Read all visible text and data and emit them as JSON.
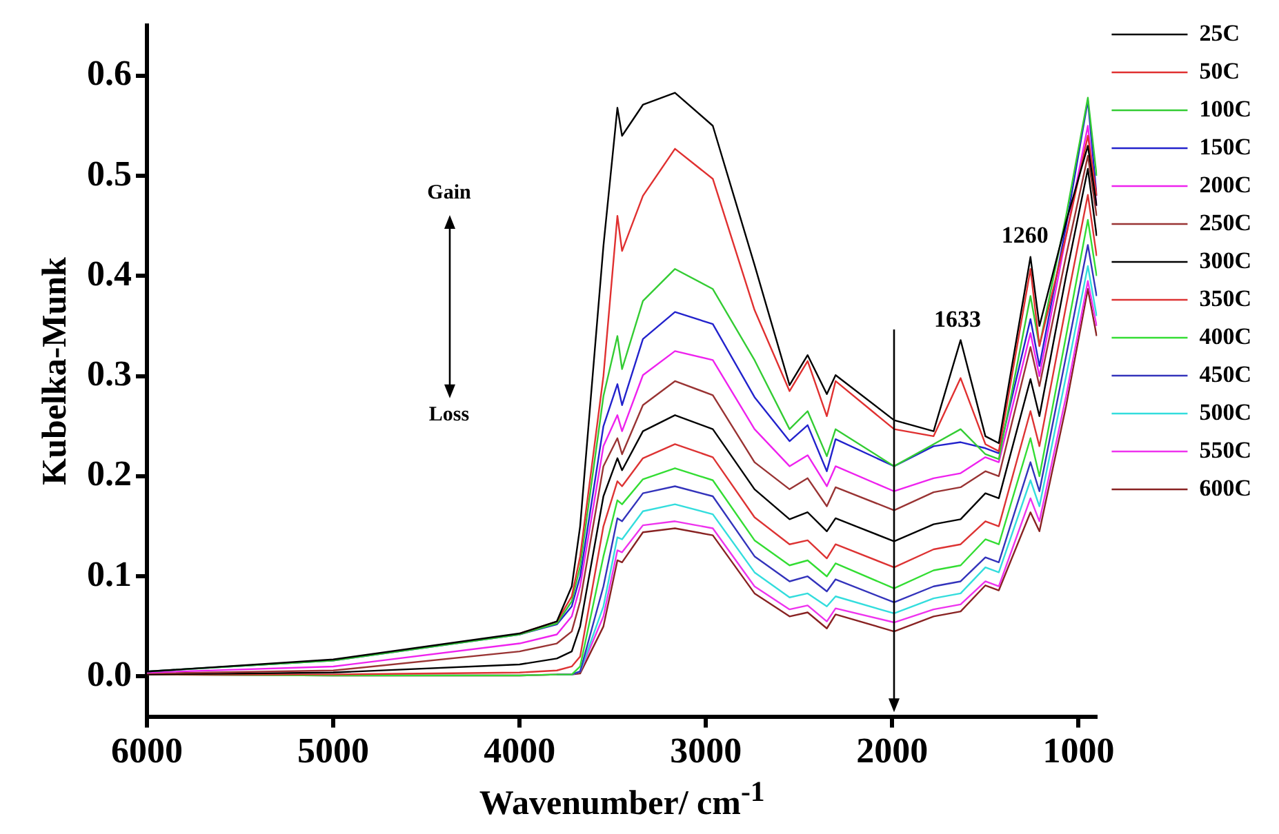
{
  "chart_data": {
    "type": "line",
    "xlabel": "Wavenumber/ cm$^{-1}$",
    "ylabel": "Kubelka-Munk",
    "x": [
      6000,
      5000,
      4000,
      3800,
      3720,
      3675,
      3550,
      3475,
      3450,
      3338,
      3166,
      2963,
      2739,
      2551,
      2454,
      2351,
      2304,
      1990,
      1778,
      1633,
      1500,
      1428,
      1258,
      1210,
      1067,
      950,
      903
    ],
    "series": [
      {
        "name": "25C",
        "color": "#000000",
        "values": [
          0.005,
          0.017,
          0.043,
          0.055,
          0.09,
          0.15,
          0.43,
          0.568,
          0.54,
          0.571,
          0.583,
          0.55,
          0.411,
          0.291,
          0.321,
          0.282,
          0.301,
          0.256,
          0.245,
          0.336,
          0.24,
          0.233,
          0.419,
          0.35,
          0.454,
          0.53,
          0.47
        ]
      },
      {
        "name": "50C",
        "color": "#e03030",
        "values": [
          null,
          null,
          0.043,
          0.055,
          0.08,
          0.12,
          0.3,
          0.46,
          0.425,
          0.48,
          0.527,
          0.497,
          0.366,
          0.285,
          0.315,
          0.26,
          0.295,
          0.247,
          0.24,
          0.298,
          0.232,
          0.225,
          0.407,
          0.33,
          0.44,
          0.54,
          0.48
        ]
      },
      {
        "name": "100C",
        "color": "#33cc33",
        "values": [
          0.005,
          0.016,
          0.042,
          0.053,
          0.075,
          0.11,
          0.28,
          0.34,
          0.307,
          0.375,
          0.407,
          0.387,
          0.316,
          0.247,
          0.265,
          0.22,
          0.247,
          0.21,
          0.232,
          0.247,
          0.222,
          0.217,
          0.38,
          0.33,
          0.46,
          0.578,
          0.5
        ]
      },
      {
        "name": "150C",
        "color": "#2222cc",
        "values": [
          0.005,
          0.016,
          0.042,
          0.052,
          0.07,
          0.1,
          0.25,
          0.292,
          0.271,
          0.337,
          0.364,
          0.352,
          0.279,
          0.235,
          0.251,
          0.205,
          0.237,
          0.21,
          0.23,
          0.234,
          0.228,
          0.223,
          0.357,
          0.31,
          0.45,
          0.575,
          0.48
        ]
      },
      {
        "name": "200C",
        "color": "#ee22ee",
        "values": [
          0.004,
          0.01,
          0.033,
          0.042,
          0.06,
          0.09,
          0.23,
          0.261,
          0.245,
          0.301,
          0.325,
          0.316,
          0.247,
          0.21,
          0.221,
          0.19,
          0.21,
          0.185,
          0.198,
          0.203,
          0.219,
          0.214,
          0.343,
          0.3,
          0.44,
          0.55,
          0.47
        ]
      },
      {
        "name": "250C",
        "color": "#993333",
        "values": [
          0.003,
          0.006,
          0.025,
          0.033,
          0.045,
          0.075,
          0.21,
          0.238,
          0.222,
          0.271,
          0.295,
          0.281,
          0.214,
          0.187,
          0.198,
          0.17,
          0.189,
          0.166,
          0.184,
          0.189,
          0.205,
          0.2,
          0.329,
          0.29,
          0.42,
          0.52,
          0.46
        ]
      },
      {
        "name": "300C",
        "color": "#000000",
        "values": [
          0.002,
          0.004,
          0.012,
          0.018,
          0.025,
          0.05,
          0.18,
          0.218,
          0.206,
          0.245,
          0.261,
          0.247,
          0.187,
          0.157,
          0.164,
          0.145,
          0.158,
          0.135,
          0.152,
          0.157,
          0.183,
          0.178,
          0.297,
          0.26,
          0.4,
          0.507,
          0.44
        ]
      },
      {
        "name": "350C",
        "color": "#dd3333",
        "values": [
          0.002,
          0.002,
          0.004,
          0.006,
          0.01,
          0.02,
          0.15,
          0.195,
          0.19,
          0.218,
          0.232,
          0.219,
          0.159,
          0.132,
          0.136,
          0.118,
          0.132,
          0.109,
          0.127,
          0.132,
          0.155,
          0.15,
          0.265,
          0.23,
          0.37,
          0.481,
          0.42
        ]
      },
      {
        "name": "400C",
        "color": "#33dd33",
        "values": [
          0.002,
          0.001,
          0.001,
          0.002,
          0.002,
          0.01,
          0.12,
          0.176,
          0.172,
          0.197,
          0.208,
          0.196,
          0.136,
          0.111,
          0.116,
          0.1,
          0.113,
          0.088,
          0.106,
          0.111,
          0.137,
          0.132,
          0.238,
          0.2,
          0.34,
          0.456,
          0.4
        ]
      },
      {
        "name": "450C",
        "color": "#3333bb",
        "values": [
          null,
          null,
          null,
          0.002,
          0.002,
          0.005,
          0.09,
          0.158,
          0.155,
          0.183,
          0.19,
          0.18,
          0.12,
          0.095,
          0.1,
          0.085,
          0.097,
          0.074,
          0.09,
          0.095,
          0.119,
          0.114,
          0.214,
          0.185,
          0.32,
          0.431,
          0.38
        ]
      },
      {
        "name": "500C",
        "color": "#33dddd",
        "values": [
          null,
          null,
          null,
          null,
          0.002,
          0.005,
          0.07,
          0.139,
          0.137,
          0.165,
          0.172,
          0.162,
          0.104,
          0.079,
          0.083,
          0.07,
          0.08,
          0.063,
          0.078,
          0.083,
          0.109,
          0.104,
          0.196,
          0.17,
          0.3,
          0.41,
          0.36
        ]
      },
      {
        "name": "550C",
        "color": "#ee33ee",
        "values": [
          0.002,
          0.001,
          0.001,
          0.002,
          0.002,
          0.005,
          0.06,
          0.126,
          0.124,
          0.151,
          0.155,
          0.148,
          0.09,
          0.067,
          0.071,
          0.055,
          0.068,
          0.054,
          0.067,
          0.072,
          0.095,
          0.09,
          0.178,
          0.155,
          0.28,
          0.395,
          0.35
        ]
      },
      {
        "name": "600C",
        "color": "#882222",
        "values": [
          0.002,
          0.001,
          0.001,
          0.002,
          0.002,
          0.003,
          0.05,
          0.116,
          0.114,
          0.144,
          0.148,
          0.141,
          0.083,
          0.06,
          0.064,
          0.048,
          0.062,
          0.045,
          0.06,
          0.065,
          0.091,
          0.086,
          0.164,
          0.145,
          0.27,
          0.387,
          0.34
        ]
      }
    ],
    "xlim": [
      6000,
      900
    ],
    "xticks": [
      6000,
      5000,
      4000,
      3000,
      2000,
      1000
    ],
    "ylim": [
      -0.04,
      0.65
    ],
    "yticks": [
      {
        "value": 0,
        "label": "0.0"
      },
      0.1,
      0.2,
      0.3,
      0.4,
      0.5,
      0.6
    ],
    "annotations": [
      "1633",
      "1260",
      "Gain",
      "Loss"
    ],
    "grid": false,
    "legend": "right",
    "marker": "none",
    "line_style": "solid"
  }
}
